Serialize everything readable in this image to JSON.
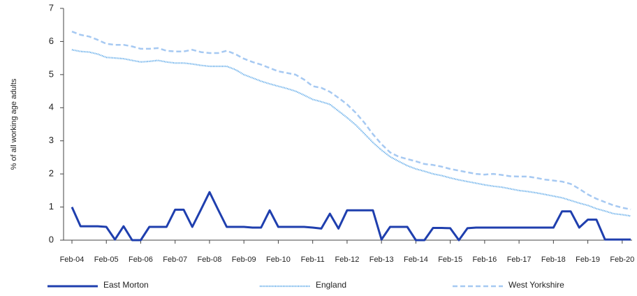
{
  "chart_data": {
    "type": "line",
    "y_label": "% of all working age adults",
    "categories": [
      "Feb-04",
      null,
      null,
      null,
      "Feb-05",
      null,
      null,
      null,
      "Feb-06",
      null,
      null,
      null,
      "Feb-07",
      null,
      null,
      null,
      "Feb-08",
      null,
      null,
      null,
      "Feb-09",
      null,
      null,
      null,
      "Feb-10",
      null,
      null,
      null,
      "Feb-11",
      null,
      null,
      null,
      "Feb-12",
      null,
      null,
      null,
      "Feb-13",
      null,
      null,
      null,
      "Feb-14",
      null,
      null,
      null,
      "Feb-15",
      null,
      null,
      null,
      "Feb-16",
      null,
      null,
      null,
      "Feb-17",
      null,
      null,
      null,
      "Feb-18",
      null,
      null,
      null,
      "Feb-19",
      null,
      null,
      null,
      "Feb-20",
      null
    ],
    "series": [
      {
        "name": "East Morton",
        "color": "#1f3fae",
        "style": "solid",
        "values": [
          1.0,
          0.42,
          0.42,
          0.42,
          0.4,
          0.02,
          0.42,
          0.0,
          0.0,
          0.4,
          0.4,
          0.4,
          0.92,
          0.92,
          0.4,
          0.92,
          1.45,
          0.92,
          0.4,
          0.4,
          0.4,
          0.38,
          0.38,
          0.9,
          0.4,
          0.4,
          0.4,
          0.4,
          0.38,
          0.35,
          0.8,
          0.35,
          0.9,
          0.9,
          0.9,
          0.9,
          0.02,
          0.4,
          0.4,
          0.4,
          0.0,
          0.0,
          0.37,
          0.37,
          0.36,
          0.0,
          0.36,
          0.38,
          0.38,
          0.38,
          0.38,
          0.38,
          0.38,
          0.38,
          0.38,
          0.38,
          0.38,
          0.87,
          0.87,
          0.38,
          0.62,
          0.62,
          0.02,
          0.02,
          0.02,
          0.02
        ]
      },
      {
        "name": "England",
        "color": "#4b9fe6",
        "style": "dotted",
        "values": [
          5.75,
          5.7,
          5.68,
          5.62,
          5.52,
          5.5,
          5.48,
          5.43,
          5.38,
          5.4,
          5.43,
          5.38,
          5.35,
          5.35,
          5.32,
          5.28,
          5.25,
          5.25,
          5.25,
          5.15,
          5.0,
          4.9,
          4.8,
          4.72,
          4.65,
          4.58,
          4.5,
          4.38,
          4.25,
          4.18,
          4.1,
          3.9,
          3.7,
          3.48,
          3.22,
          2.95,
          2.72,
          2.52,
          2.38,
          2.25,
          2.15,
          2.08,
          2.0,
          1.95,
          1.88,
          1.82,
          1.77,
          1.72,
          1.67,
          1.63,
          1.6,
          1.55,
          1.5,
          1.47,
          1.43,
          1.38,
          1.33,
          1.28,
          1.2,
          1.12,
          1.05,
          0.95,
          0.88,
          0.8,
          0.77,
          0.73
        ]
      },
      {
        "name": "West Yorkshire",
        "color": "#a6c9f2",
        "style": "dashed",
        "values": [
          6.3,
          6.2,
          6.15,
          6.05,
          5.93,
          5.9,
          5.9,
          5.85,
          5.78,
          5.78,
          5.8,
          5.72,
          5.7,
          5.7,
          5.75,
          5.68,
          5.65,
          5.65,
          5.72,
          5.62,
          5.48,
          5.38,
          5.3,
          5.2,
          5.1,
          5.05,
          5.0,
          4.85,
          4.65,
          4.6,
          4.48,
          4.3,
          4.1,
          3.85,
          3.55,
          3.2,
          2.9,
          2.65,
          2.52,
          2.45,
          2.38,
          2.3,
          2.27,
          2.22,
          2.15,
          2.1,
          2.05,
          2.0,
          1.98,
          2.0,
          1.97,
          1.93,
          1.92,
          1.92,
          1.88,
          1.83,
          1.8,
          1.77,
          1.7,
          1.55,
          1.38,
          1.25,
          1.15,
          1.05,
          0.98,
          0.93
        ]
      }
    ],
    "ylim": [
      0,
      7
    ],
    "yticks": [
      0,
      1,
      2,
      3,
      4,
      5,
      6,
      7
    ],
    "grid": false
  }
}
